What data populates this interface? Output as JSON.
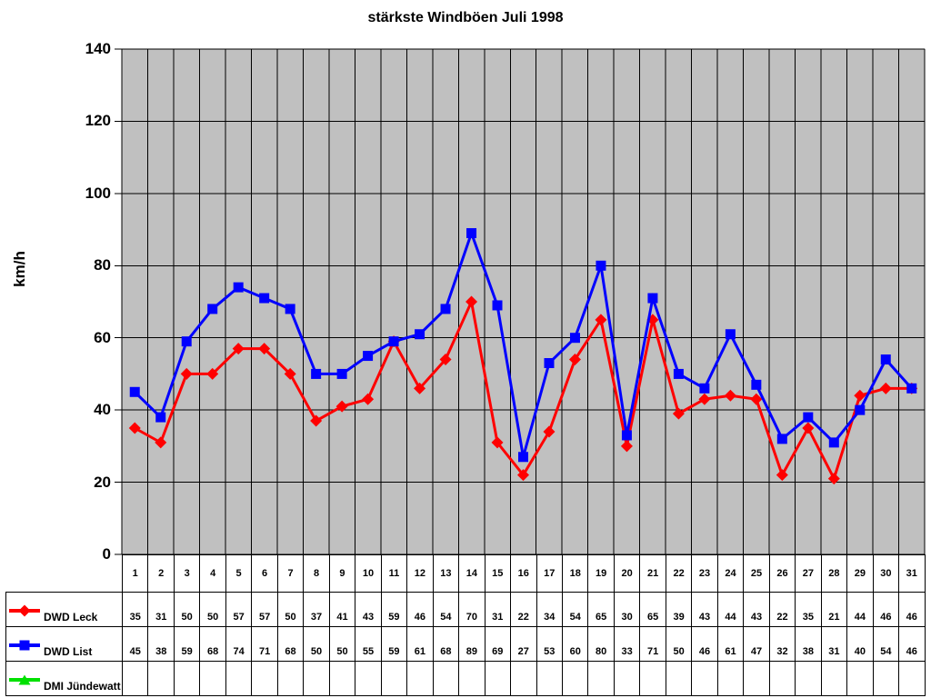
{
  "window": {
    "background": "#FFFFFF"
  },
  "chart_data": {
    "type": "line",
    "title": "stärkste Windböen Juli 1998",
    "xlabel": "",
    "ylabel": "km/h",
    "ylim": [
      0,
      140
    ],
    "yticks": [
      0,
      20,
      40,
      60,
      80,
      100,
      120,
      140
    ],
    "grid": true,
    "plot_bg": "#C0C0C0",
    "plot_border": "#808080",
    "gridline_color": "#000000",
    "legend_position": "table-left",
    "categories": [
      "1",
      "2",
      "3",
      "4",
      "5",
      "6",
      "7",
      "8",
      "9",
      "10",
      "11",
      "12",
      "13",
      "14",
      "15",
      "16",
      "17",
      "18",
      "19",
      "20",
      "21",
      "22",
      "23",
      "24",
      "25",
      "26",
      "27",
      "28",
      "29",
      "30",
      "31"
    ],
    "series": [
      {
        "name": "DWD Leck",
        "color": "#FF0000",
        "marker": "diamond",
        "values": [
          35,
          31,
          50,
          50,
          57,
          57,
          50,
          37,
          41,
          43,
          59,
          46,
          54,
          70,
          31,
          22,
          34,
          54,
          65,
          30,
          65,
          39,
          43,
          44,
          43,
          22,
          35,
          21,
          44,
          46,
          46
        ]
      },
      {
        "name": "DWD List",
        "color": "#0000FF",
        "marker": "square",
        "values": [
          45,
          38,
          59,
          68,
          74,
          71,
          68,
          50,
          50,
          55,
          59,
          61,
          68,
          89,
          69,
          27,
          53,
          60,
          80,
          33,
          71,
          50,
          46,
          61,
          47,
          32,
          38,
          31,
          40,
          54,
          46
        ]
      },
      {
        "name": "DMI Jündewatt",
        "color": "#00E000",
        "marker": "triangle",
        "values": []
      }
    ]
  }
}
